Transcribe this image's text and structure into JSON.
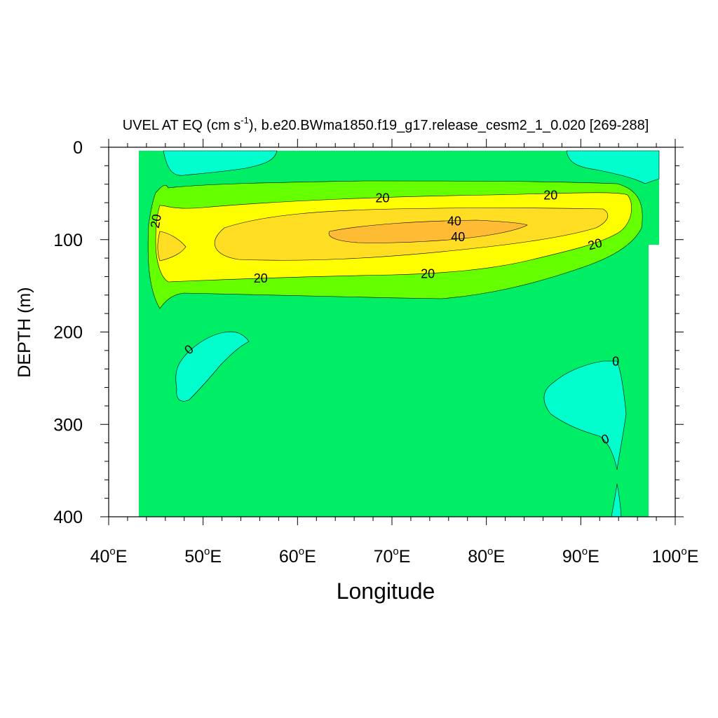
{
  "chart_data": {
    "type": "contour",
    "title": "UVEL AT EQ (cm s",
    "title_superscript": "-1",
    "title_rest": "), b.e20.BWma1850.f19_g17.release_cesm2_1_0.020 [269-288]",
    "xlabel": "Longitude",
    "ylabel": "DEPTH (m)",
    "xlim": [
      40,
      100
    ],
    "ylim": [
      0,
      400
    ],
    "y_inverted": true,
    "x_ticks": [
      {
        "value": 40,
        "deg": "40",
        "suffix": "E"
      },
      {
        "value": 50,
        "deg": "50",
        "suffix": "E"
      },
      {
        "value": 60,
        "deg": "60",
        "suffix": "E"
      },
      {
        "value": 70,
        "deg": "70",
        "suffix": "E"
      },
      {
        "value": 80,
        "deg": "80",
        "suffix": "E"
      },
      {
        "value": 90,
        "deg": "90",
        "suffix": "E"
      },
      {
        "value": 100,
        "deg": "100",
        "suffix": "E"
      }
    ],
    "degree_symbol": "o",
    "y_ticks": [
      "0",
      "100",
      "200",
      "300",
      "400"
    ],
    "y_tick_values": [
      0,
      100,
      200,
      300,
      400
    ],
    "contour_labels": [
      {
        "text": "20",
        "lon": 69.0,
        "depth": 55
      },
      {
        "text": "20",
        "lon": 86.8,
        "depth": 52
      },
      {
        "text": "20",
        "lon": 45.0,
        "depth": 80,
        "rotate": -80
      },
      {
        "text": "40",
        "lon": 76.6,
        "depth": 80
      },
      {
        "text": "40",
        "lon": 77.0,
        "depth": 97
      },
      {
        "text": "20",
        "lon": 91.5,
        "depth": 105,
        "rotate": -15
      },
      {
        "text": "20",
        "lon": 56.1,
        "depth": 142
      },
      {
        "text": "20",
        "lon": 73.8,
        "depth": 137
      },
      {
        "text": "0",
        "lon": 48.5,
        "depth": 219,
        "rotate": -40
      },
      {
        "text": "0",
        "lon": 93.7,
        "depth": 232
      },
      {
        "text": "0",
        "lon": 92.6,
        "depth": 316,
        "rotate": -20
      }
    ],
    "colors": {
      "negative": "#00ffcc",
      "band_0_10": "#00ee66",
      "band_10_20": "#66ff00",
      "band_20_30": "#ffff00",
      "band_30_40": "#ffdd22",
      "band_40_50": "#ffbb33"
    }
  }
}
